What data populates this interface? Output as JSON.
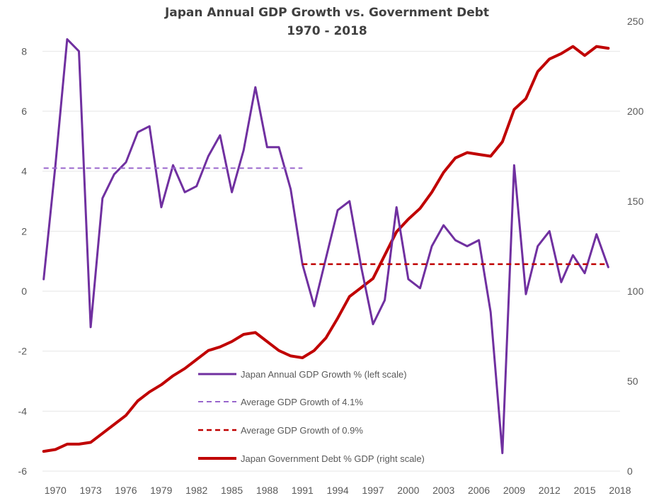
{
  "chart_data": {
    "type": "line",
    "title": "Japan Annual GDP Growth vs. Government Debt",
    "subtitle": "1970 - 2018",
    "x_ticks": [
      "1970",
      "1973",
      "1976",
      "1979",
      "1982",
      "1985",
      "1988",
      "1991",
      "1994",
      "1997",
      "2000",
      "2003",
      "2006",
      "2009",
      "2012",
      "2015",
      "2018"
    ],
    "y_left_ticks": [
      "8",
      "6",
      "4",
      "2",
      "0",
      "-2",
      "-4",
      "-6"
    ],
    "y_right_ticks": [
      "250",
      "200",
      "150",
      "100",
      "50",
      "0"
    ],
    "y_left_range": [
      -6,
      9
    ],
    "y_right_range": [
      0,
      250
    ],
    "x_range": [
      1968.9,
      2018
    ],
    "grid": "horizontal",
    "legend_position": "lower-center",
    "colors": {
      "gdp": "#7030A0",
      "avg_high": "#9966CC",
      "avg_low": "#C00000",
      "debt": "#C00000"
    },
    "series": [
      {
        "name": "Japan Annual GDP Growth % (left scale)",
        "axis": "left",
        "style": "solid",
        "x": [
          1969,
          1970,
          1971,
          1972,
          1973,
          1974,
          1975,
          1976,
          1977,
          1978,
          1979,
          1980,
          1981,
          1982,
          1983,
          1984,
          1985,
          1986,
          1987,
          1988,
          1989,
          1990,
          1991,
          1992,
          1993,
          1994,
          1995,
          1996,
          1997,
          1998,
          1999,
          2000,
          2001,
          2002,
          2003,
          2004,
          2005,
          2006,
          2007,
          2008,
          2009,
          2010,
          2011,
          2012,
          2013,
          2014,
          2015,
          2016,
          2017
        ],
        "values": [
          0.4,
          4.2,
          8.4,
          8.0,
          -1.2,
          3.1,
          3.9,
          4.3,
          5.3,
          5.5,
          2.8,
          4.2,
          3.3,
          3.5,
          4.5,
          5.2,
          3.3,
          4.7,
          6.8,
          4.8,
          4.8,
          3.4,
          0.9,
          -0.5,
          1.1,
          2.7,
          3.0,
          0.8,
          -1.1,
          -0.3,
          2.8,
          0.4,
          0.1,
          1.5,
          2.2,
          1.7,
          1.5,
          1.7,
          -0.7,
          -5.4,
          4.2,
          -0.1,
          1.5,
          2.0,
          0.3,
          1.2,
          0.6,
          1.9,
          0.8
        ]
      },
      {
        "name": "Average GDP Growth of 4.1%",
        "axis": "left",
        "style": "dashed",
        "x": [
          1969,
          1991
        ],
        "values": [
          4.1,
          4.1
        ]
      },
      {
        "name": "Average GDP Growth of 0.9%",
        "axis": "left",
        "style": "dashed",
        "x": [
          1991,
          2017
        ],
        "values": [
          0.9,
          0.9
        ]
      },
      {
        "name": "Japan Government Debt % GDP (right scale)",
        "axis": "right",
        "style": "solid",
        "x": [
          1969,
          1970,
          1971,
          1972,
          1973,
          1974,
          1975,
          1976,
          1977,
          1978,
          1979,
          1980,
          1981,
          1982,
          1983,
          1984,
          1985,
          1986,
          1987,
          1988,
          1989,
          1990,
          1991,
          1992,
          1993,
          1994,
          1995,
          1996,
          1997,
          1998,
          1999,
          2000,
          2001,
          2002,
          2003,
          2004,
          2005,
          2006,
          2007,
          2008,
          2009,
          2010,
          2011,
          2012,
          2013,
          2014,
          2015,
          2016,
          2017
        ],
        "values": [
          11,
          12,
          15,
          15,
          16,
          21,
          26,
          31,
          39,
          44,
          48,
          53,
          57,
          62,
          67,
          69,
          72,
          76,
          77,
          72,
          67,
          64,
          63,
          67,
          74,
          85,
          97,
          102,
          107,
          120,
          133,
          140,
          146,
          155,
          166,
          174,
          177,
          176,
          175,
          183,
          201,
          207,
          222,
          229,
          232,
          236,
          231,
          236,
          235
        ]
      }
    ]
  }
}
